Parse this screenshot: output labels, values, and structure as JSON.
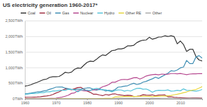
{
  "chart_data": {
    "type": "line",
    "title": "US electricity generation 1960-2017*",
    "x": [
      1960,
      1961,
      1962,
      1963,
      1964,
      1965,
      1966,
      1967,
      1968,
      1969,
      1970,
      1971,
      1972,
      1973,
      1974,
      1975,
      1976,
      1977,
      1978,
      1979,
      1980,
      1981,
      1982,
      1983,
      1984,
      1985,
      1986,
      1987,
      1988,
      1989,
      1990,
      1991,
      1992,
      1993,
      1994,
      1995,
      1996,
      1997,
      1998,
      1999,
      2000,
      2001,
      2002,
      2003,
      2004,
      2005,
      2006,
      2007,
      2008,
      2009,
      2010,
      2011,
      2012,
      2013,
      2014,
      2015,
      2016,
      2017
    ],
    "series": [
      {
        "name": "Coal",
        "color": "#333333",
        "values": [
          403,
          422,
          450,
          494,
          526,
          571,
          613,
          630,
          685,
          706,
          704,
          713,
          771,
          848,
          828,
          853,
          944,
          985,
          976,
          1075,
          1162,
          1203,
          1192,
          1259,
          1342,
          1402,
          1386,
          1464,
          1541,
          1554,
          1594,
          1592,
          1621,
          1690,
          1691,
          1709,
          1796,
          1845,
          1874,
          1881,
          1966,
          1904,
          1933,
          1974,
          1978,
          2013,
          1991,
          2016,
          1986,
          1756,
          1847,
          1733,
          1514,
          1581,
          1582,
          1352,
          1239,
          1206
        ]
      },
      {
        "name": "Oil",
        "color": "#9e2a3f",
        "values": [
          48,
          49,
          49,
          52,
          57,
          65,
          79,
          89,
          104,
          138,
          184,
          220,
          274,
          314,
          301,
          289,
          320,
          358,
          365,
          304,
          246,
          206,
          147,
          144,
          120,
          100,
          137,
          118,
          149,
          158,
          127,
          120,
          100,
          113,
          106,
          75,
          82,
          93,
          128,
          118,
          111,
          125,
          95,
          119,
          121,
          122,
          64,
          66,
          46,
          39,
          37,
          30,
          23,
          27,
          30,
          28,
          24,
          21
        ]
      },
      {
        "name": "Gas",
        "color": "#3d8db3",
        "values": [
          158,
          169,
          184,
          202,
          220,
          222,
          251,
          265,
          304,
          333,
          373,
          375,
          376,
          341,
          320,
          300,
          295,
          306,
          305,
          329,
          346,
          346,
          305,
          274,
          297,
          292,
          249,
          273,
          253,
          297,
          373,
          382,
          404,
          415,
          460,
          496,
          455,
          479,
          531,
          556,
          601,
          639,
          691,
          650,
          710,
          761,
          816,
          897,
          883,
          921,
          988,
          1014,
          1226,
          1125,
          1126,
          1335,
          1379,
          1296
        ]
      },
      {
        "name": "Nuclear",
        "color": "#b5468e",
        "values": [
          1,
          2,
          2,
          3,
          3,
          4,
          6,
          8,
          13,
          14,
          22,
          38,
          54,
          83,
          114,
          173,
          191,
          251,
          276,
          255,
          251,
          273,
          283,
          294,
          328,
          384,
          414,
          455,
          527,
          529,
          577,
          613,
          619,
          610,
          640,
          673,
          675,
          629,
          674,
          728,
          754,
          769,
          780,
          764,
          789,
          782,
          787,
          806,
          806,
          799,
          807,
          790,
          769,
          789,
          797,
          797,
          806,
          805
        ]
      },
      {
        "name": "Hydro",
        "color": "#56c3d9",
        "values": [
          146,
          152,
          169,
          166,
          177,
          194,
          195,
          222,
          223,
          250,
          248,
          266,
          273,
          272,
          301,
          300,
          284,
          220,
          280,
          280,
          276,
          261,
          309,
          332,
          321,
          281,
          290,
          249,
          223,
          265,
          283,
          280,
          243,
          269,
          247,
          296,
          331,
          338,
          304,
          312,
          271,
          208,
          255,
          271,
          265,
          265,
          282,
          243,
          250,
          270,
          255,
          316,
          272,
          265,
          255,
          244,
          262,
          297
        ]
      },
      {
        "name": "Other RE",
        "color": "#e5d43b",
        "values": [
          0,
          0,
          0,
          0,
          0,
          0,
          1,
          1,
          1,
          1,
          1,
          1,
          2,
          2,
          3,
          3,
          4,
          4,
          3,
          4,
          6,
          6,
          5,
          6,
          8,
          11,
          13,
          15,
          17,
          58,
          64,
          68,
          73,
          76,
          76,
          73,
          75,
          77,
          78,
          79,
          80,
          70,
          79,
          79,
          83,
          87,
          97,
          106,
          126,
          144,
          167,
          194,
          218,
          253,
          280,
          295,
          340,
          390
        ]
      },
      {
        "name": "Other",
        "color": "#aaaaaa",
        "values": [
          0,
          0,
          0,
          0,
          0,
          0,
          0,
          0,
          0,
          0,
          0,
          0,
          0,
          0,
          0,
          0,
          0,
          0,
          0,
          0,
          0,
          0,
          0,
          0,
          0,
          0,
          0,
          0,
          0,
          8,
          12,
          12,
          13,
          13,
          14,
          14,
          14,
          14,
          15,
          15,
          15,
          14,
          15,
          15,
          16,
          16,
          16,
          17,
          17,
          16,
          17,
          17,
          17,
          18,
          18,
          18,
          17,
          17
        ]
      }
    ],
    "xlim": [
      1960,
      2017
    ],
    "xticks": [
      1960,
      1970,
      1980,
      1990,
      2000,
      2010
    ],
    "ylim": [
      0,
      2500
    ],
    "yticks": [
      {
        "value": 0,
        "label": "0TWh"
      },
      {
        "value": 500,
        "label": "500TWh"
      },
      {
        "value": 1000,
        "label": "1,000TWh"
      },
      {
        "value": 1500,
        "label": "1,500TWh"
      },
      {
        "value": 2000,
        "label": "2,000TWh"
      },
      {
        "value": 2500,
        "label": "2,500TWh"
      }
    ],
    "grid": true
  }
}
